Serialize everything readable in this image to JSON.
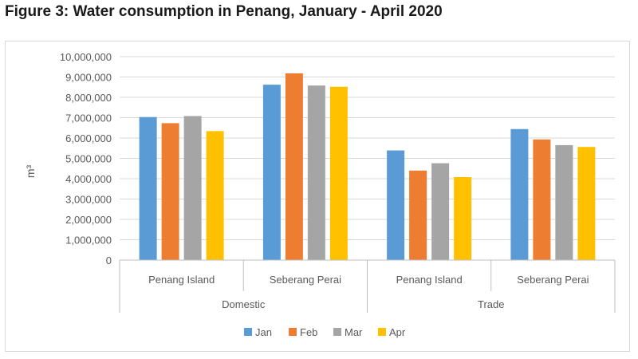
{
  "figure": {
    "title": "Figure 3: Water consumption in Penang, January - April 2020"
  },
  "chart_data": {
    "type": "bar",
    "ylabel": "m³",
    "ylim": [
      0,
      10000000
    ],
    "yticks": [
      0,
      1000000,
      2000000,
      3000000,
      4000000,
      5000000,
      6000000,
      7000000,
      8000000,
      9000000,
      10000000
    ],
    "ytick_labels": [
      "0",
      "1,000,000",
      "2,000,000",
      "3,000,000",
      "4,000,000",
      "5,000,000",
      "6,000,000",
      "7,000,000",
      "8,000,000",
      "9,000,000",
      "10,000,000"
    ],
    "groups": [
      {
        "label": "Domestic",
        "categories": [
          "Penang Island",
          "Seberang Perai"
        ]
      },
      {
        "label": "Trade",
        "categories": [
          "Penang Island",
          "Seberang Perai"
        ]
      }
    ],
    "categories": [
      "Penang Island",
      "Seberang Perai",
      "Penang Island",
      "Seberang Perai"
    ],
    "series": [
      {
        "name": "Jan",
        "color": "#5b9bd5",
        "values": [
          7030000,
          8620000,
          5390000,
          6440000
        ]
      },
      {
        "name": "Feb",
        "color": "#ed7d31",
        "values": [
          6730000,
          9180000,
          4400000,
          5930000
        ]
      },
      {
        "name": "Mar",
        "color": "#a5a5a5",
        "values": [
          7080000,
          8580000,
          4760000,
          5650000
        ]
      },
      {
        "name": "Apr",
        "color": "#ffc000",
        "values": [
          6340000,
          8520000,
          4080000,
          5560000
        ]
      }
    ],
    "grid": true,
    "legend_position": "bottom"
  }
}
